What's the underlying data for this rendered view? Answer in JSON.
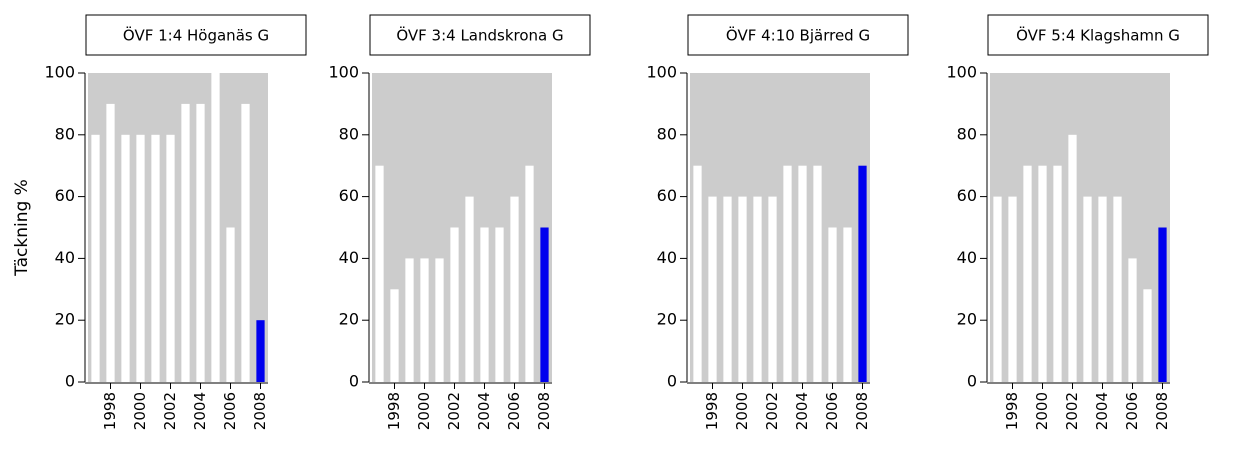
{
  "chart_data": [
    {
      "type": "bar",
      "title": "ÖVF 1:4 Höganäs G",
      "ylabel": "Täckning %",
      "x": [
        1997,
        1998,
        1999,
        2000,
        2001,
        2002,
        2003,
        2004,
        2005,
        2006,
        2007,
        2008
      ],
      "values": [
        80,
        90,
        80,
        80,
        80,
        80,
        90,
        90,
        100,
        50,
        90,
        20
      ],
      "colors": [
        "#ffffff",
        "#ffffff",
        "#ffffff",
        "#ffffff",
        "#ffffff",
        "#ffffff",
        "#ffffff",
        "#ffffff",
        "#ffffff",
        "#ffffff",
        "#ffffff",
        "#0000ee"
      ],
      "background": "#cccccc",
      "xlim": [
        1996.5,
        2008.5
      ],
      "xticks": [
        1998,
        2000,
        2002,
        2004,
        2006,
        2008
      ],
      "ylim": [
        0,
        100
      ],
      "yticks": [
        0,
        20,
        40,
        60,
        80,
        100
      ]
    },
    {
      "type": "bar",
      "title": "ÖVF 3:4 Landskrona G",
      "x": [
        1997,
        1998,
        1999,
        2000,
        2001,
        2002,
        2003,
        2004,
        2005,
        2006,
        2007,
        2008
      ],
      "values": [
        70,
        30,
        40,
        40,
        40,
        50,
        60,
        50,
        50,
        60,
        70,
        50
      ],
      "colors": [
        "#ffffff",
        "#ffffff",
        "#ffffff",
        "#ffffff",
        "#ffffff",
        "#ffffff",
        "#ffffff",
        "#ffffff",
        "#ffffff",
        "#ffffff",
        "#ffffff",
        "#0000ee"
      ],
      "background": "#cccccc",
      "xlim": [
        1996.5,
        2008.5
      ],
      "xticks": [
        1998,
        2000,
        2002,
        2004,
        2006,
        2008
      ],
      "ylim": [
        0,
        100
      ],
      "yticks": [
        0,
        20,
        40,
        60,
        80,
        100
      ]
    },
    {
      "type": "bar",
      "title": "ÖVF 4:10 Bjärred G",
      "x": [
        1997,
        1998,
        1999,
        2000,
        2001,
        2002,
        2003,
        2004,
        2005,
        2006,
        2007,
        2008
      ],
      "values": [
        70,
        60,
        60,
        60,
        60,
        60,
        70,
        70,
        70,
        50,
        50,
        70
      ],
      "colors": [
        "#ffffff",
        "#ffffff",
        "#ffffff",
        "#ffffff",
        "#ffffff",
        "#ffffff",
        "#ffffff",
        "#ffffff",
        "#ffffff",
        "#ffffff",
        "#ffffff",
        "#0000ee"
      ],
      "background": "#cccccc",
      "xlim": [
        1996.5,
        2008.5
      ],
      "xticks": [
        1998,
        2000,
        2002,
        2004,
        2006,
        2008
      ],
      "ylim": [
        0,
        100
      ],
      "yticks": [
        0,
        20,
        40,
        60,
        80,
        100
      ]
    },
    {
      "type": "bar",
      "title": "ÖVF 5:4 Klagshamn G",
      "x": [
        1997,
        1998,
        1999,
        2000,
        2001,
        2002,
        2003,
        2004,
        2005,
        2006,
        2007,
        2008
      ],
      "values": [
        60,
        60,
        70,
        70,
        70,
        80,
        60,
        60,
        60,
        40,
        30,
        50
      ],
      "colors": [
        "#ffffff",
        "#ffffff",
        "#ffffff",
        "#ffffff",
        "#ffffff",
        "#ffffff",
        "#ffffff",
        "#ffffff",
        "#ffffff",
        "#ffffff",
        "#ffffff",
        "#0000ee"
      ],
      "background": "#cccccc",
      "xlim": [
        1996.5,
        2008.5
      ],
      "xticks": [
        1998,
        2000,
        2002,
        2004,
        2006,
        2008
      ],
      "ylim": [
        0,
        100
      ],
      "yticks": [
        0,
        20,
        40,
        60,
        80,
        100
      ]
    }
  ]
}
